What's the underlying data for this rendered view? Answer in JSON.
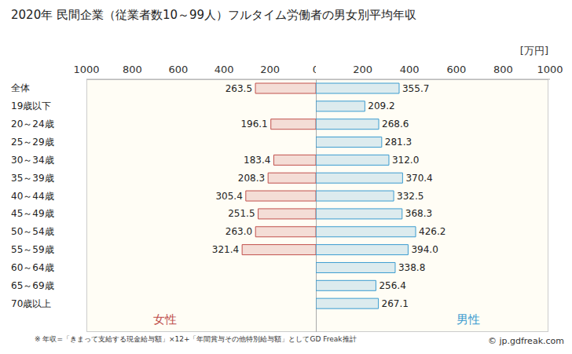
{
  "title": "2020年 民間企業（従業者数10～99人）フルタイム労働者の男女別平均年収",
  "unit": "[万円]",
  "note": "※ 年収=「きまって支給する現金給与額」×12+「年間賞与その他特別給与額」としてGD Freak推計",
  "credit": "© jp.gdfreak.com",
  "chart_data": [
    {
      "type": "bar",
      "orientation": "horizontal",
      "categories": [
        "全体",
        "19歳以下",
        "20～24歳",
        "25～29歳",
        "30～34歳",
        "35～39歳",
        "40～44歳",
        "45～49歳",
        "50～54歳",
        "55～59歳",
        "60～64歳",
        "65～69歳",
        "70歳以上"
      ],
      "series": [
        {
          "name": "女性",
          "color": "#c0504d",
          "values": [
            263.5,
            null,
            196.1,
            null,
            183.4,
            208.3,
            305.4,
            251.5,
            263.0,
            321.4,
            null,
            null,
            null
          ],
          "value_labels": [
            "263.5",
            null,
            "196.1",
            null,
            "183.4",
            "208.3",
            "305.4",
            "251.5",
            "263.0",
            "321.4",
            null,
            null,
            null
          ]
        }
      ],
      "xlim": [
        1000,
        0
      ],
      "xticks": [
        1000,
        800,
        600,
        400,
        200,
        0
      ],
      "data_labels": true
    },
    {
      "type": "bar",
      "orientation": "horizontal",
      "categories": [
        "全体",
        "19歳以下",
        "20～24歳",
        "25～29歳",
        "30～34歳",
        "35～39歳",
        "40～44歳",
        "45～49歳",
        "50～54歳",
        "55～59歳",
        "60～64歳",
        "65～69歳",
        "70歳以上"
      ],
      "series": [
        {
          "name": "男性",
          "color": "#3b9cd0",
          "values": [
            355.7,
            209.2,
            268.6,
            281.3,
            312.0,
            370.4,
            332.5,
            368.3,
            426.2,
            394.0,
            338.8,
            256.4,
            267.1
          ],
          "value_labels": [
            "355.7",
            "209.2",
            "268.6",
            "281.3",
            "312.0",
            "370.4",
            "332.5",
            "368.3",
            "426.2",
            "394.0",
            "338.8",
            "256.4",
            "267.1"
          ]
        }
      ],
      "xlim": [
        0,
        1000
      ],
      "xticks": [
        200,
        400,
        600,
        800,
        1000
      ],
      "data_labels": true,
      "tick_labels": "x"
    }
  ]
}
